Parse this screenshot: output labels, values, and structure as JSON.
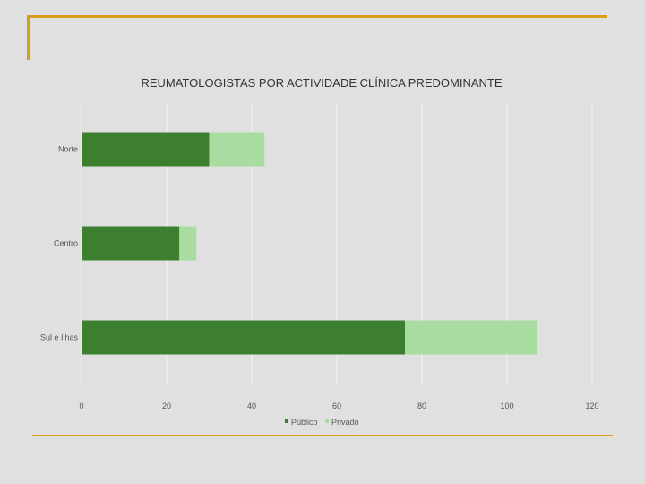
{
  "colors": {
    "background": "#e0e0e0",
    "accent_lines": "#d4a017",
    "publico": "#3b7f2f",
    "privado": "#a8dca0",
    "grid": "#f4f4f4"
  },
  "chart_data": {
    "type": "bar",
    "orientation": "horizontal",
    "stacked": true,
    "title": "REUMATOLOGISTAS POR ACTIVIDADE CLÍNICA PREDOMINANTE",
    "categories": [
      "Norte",
      "Centro",
      "Sul e Ilhas"
    ],
    "series": [
      {
        "name": "Público",
        "values": [
          30,
          23,
          76
        ]
      },
      {
        "name": "Privado",
        "values": [
          13,
          4,
          31
        ]
      }
    ],
    "xlim": [
      0,
      120
    ],
    "xticks": [
      "0",
      "20",
      "40",
      "60",
      "80",
      "100",
      "120"
    ],
    "grid": true,
    "legend": "bottom"
  }
}
